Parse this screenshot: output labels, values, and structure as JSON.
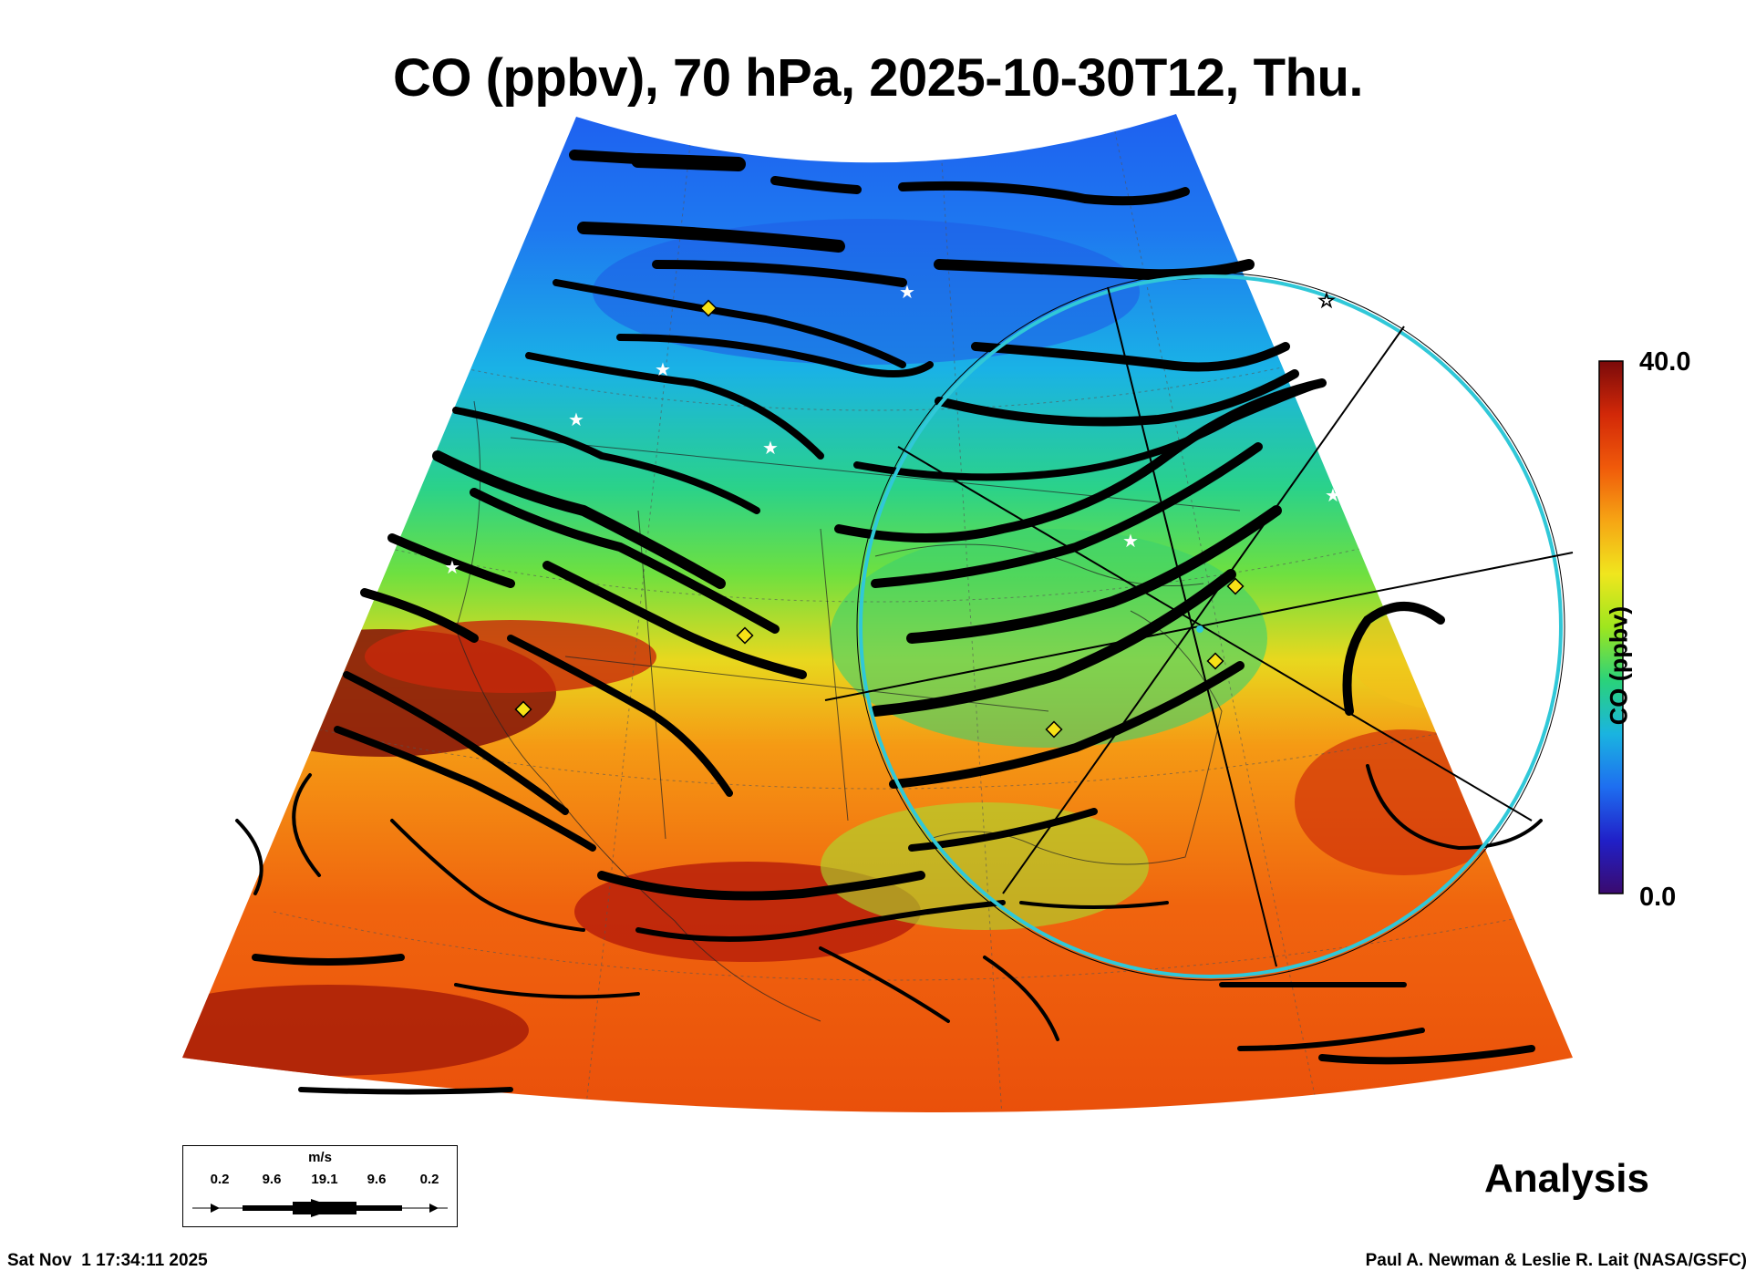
{
  "title": "CO (ppbv), 70 hPa, 2025-10-30T12, Thu.",
  "colorbar": {
    "max_label": "40.0",
    "min_label": "0.0",
    "title": "CO (ppbv)",
    "range": [
      0,
      40
    ],
    "colors": [
      "#3a0a6e",
      "#2020c8",
      "#1e6ef0",
      "#1ab4e0",
      "#2ad27a",
      "#9ee61e",
      "#f0e61e",
      "#f6a514",
      "#f05a0a",
      "#d22808",
      "#7a0a0a"
    ]
  },
  "analysis_label": "Analysis",
  "footer": {
    "timestamp": "Sat Nov  1 17:34:11 2025",
    "credit": "Paul A. Newman & Leslie R. Lait (NASA/GSFC)"
  },
  "wind_legend": {
    "unit": "m/s",
    "ticks": [
      "0.2",
      "9.6",
      "19.1",
      "9.6",
      "0.2"
    ]
  },
  "markers": {
    "circle_color": "#30c8d8",
    "diamond_color": "#f7e216",
    "star_color": "#ffffff"
  }
}
